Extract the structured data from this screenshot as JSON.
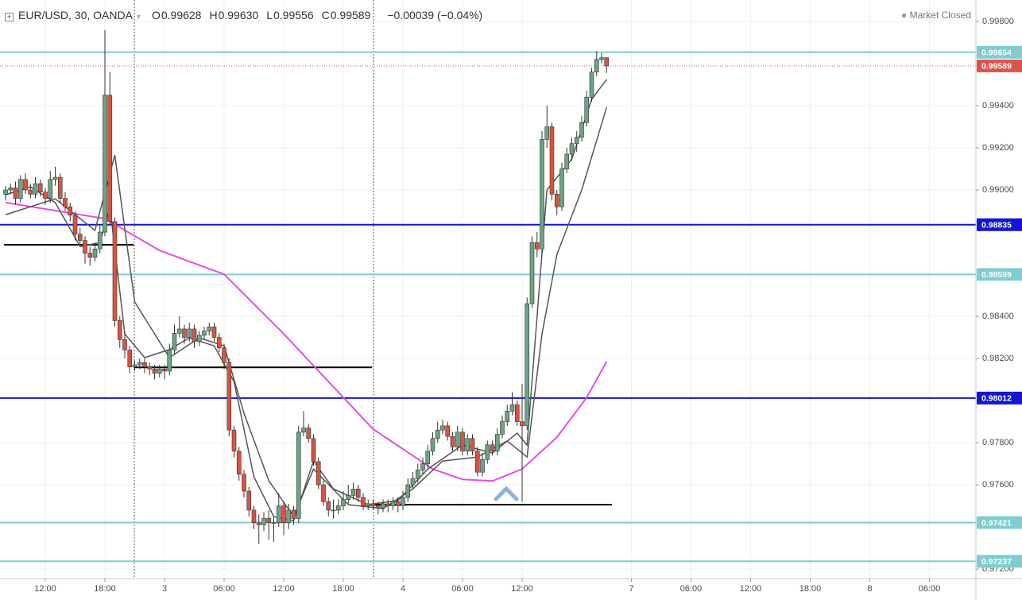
{
  "chart_data": {
    "type": "candlestick",
    "title": "EUR/USD, 30, OANDA",
    "header": {
      "ohlc": [
        {
          "key": "O",
          "text": "0.99628"
        },
        {
          "key": "H",
          "text": "0.99630"
        },
        {
          "key": "L",
          "text": "0.99556"
        },
        {
          "key": "C",
          "text": "0.99589"
        }
      ],
      "change": "−0.00039 (−0.04%)"
    },
    "status": "Market Closed",
    "up_color": "#6ba583",
    "down_color": "#d75442",
    "candles": [
      [
        0.9898,
        0.9902,
        0.9895,
        0.99
      ],
      [
        0.99,
        0.9903,
        0.9898,
        0.9901
      ],
      [
        0.9901,
        0.9904,
        0.9893,
        0.9896
      ],
      [
        0.9896,
        0.9907,
        0.9894,
        0.9905
      ],
      [
        0.9905,
        0.9908,
        0.9898,
        0.99
      ],
      [
        0.99,
        0.9903,
        0.9896,
        0.9898
      ],
      [
        0.9898,
        0.9906,
        0.9896,
        0.9903
      ],
      [
        0.9903,
        0.9905,
        0.9897,
        0.9899
      ],
      [
        0.9899,
        0.9901,
        0.9893,
        0.9896
      ],
      [
        0.9896,
        0.9909,
        0.9894,
        0.9905
      ],
      [
        0.9905,
        0.9911,
        0.9902,
        0.9906
      ],
      [
        0.9906,
        0.9908,
        0.9894,
        0.9896
      ],
      [
        0.9896,
        0.9899,
        0.989,
        0.9892
      ],
      [
        0.9892,
        0.9894,
        0.9885,
        0.9888
      ],
      [
        0.9888,
        0.989,
        0.9876,
        0.9879
      ],
      [
        0.9879,
        0.9882,
        0.9873,
        0.9876
      ],
      [
        0.9876,
        0.9878,
        0.9865,
        0.987
      ],
      [
        0.987,
        0.9873,
        0.9864,
        0.9868
      ],
      [
        0.9868,
        0.9875,
        0.9866,
        0.9872
      ],
      [
        0.9872,
        0.9883,
        0.987,
        0.988
      ],
      [
        0.988,
        0.9976,
        0.9878,
        0.9945
      ],
      [
        0.9945,
        0.9956,
        0.9883,
        0.9885
      ],
      [
        0.9885,
        0.9887,
        0.9835,
        0.9838
      ],
      [
        0.9838,
        0.984,
        0.9825,
        0.9829
      ],
      [
        0.9829,
        0.9833,
        0.982,
        0.9824
      ],
      [
        0.9824,
        0.9826,
        0.9813,
        0.9816
      ],
      [
        0.9816,
        0.9819,
        0.9814,
        0.9817
      ],
      [
        0.9817,
        0.982,
        0.9815,
        0.9818
      ],
      [
        0.9818,
        0.982,
        0.9813,
        0.9816
      ],
      [
        0.9816,
        0.9818,
        0.9812,
        0.9815
      ],
      [
        0.9815,
        0.9817,
        0.981,
        0.9813
      ],
      [
        0.9813,
        0.9817,
        0.9811,
        0.9815
      ],
      [
        0.9815,
        0.9817,
        0.981,
        0.9814
      ],
      [
        0.9814,
        0.9827,
        0.9812,
        0.9824
      ],
      [
        0.9824,
        0.9836,
        0.9822,
        0.9832
      ],
      [
        0.9832,
        0.984,
        0.983,
        0.9834
      ],
      [
        0.9834,
        0.9836,
        0.9827,
        0.983
      ],
      [
        0.983,
        0.9837,
        0.9828,
        0.9834
      ],
      [
        0.9834,
        0.9836,
        0.9825,
        0.9828
      ],
      [
        0.9828,
        0.9833,
        0.9826,
        0.9831
      ],
      [
        0.9831,
        0.9835,
        0.9829,
        0.9833
      ],
      [
        0.9833,
        0.9837,
        0.9831,
        0.9835
      ],
      [
        0.9835,
        0.9837,
        0.9828,
        0.983
      ],
      [
        0.983,
        0.9832,
        0.9823,
        0.9825
      ],
      [
        0.9825,
        0.9827,
        0.9815,
        0.9818
      ],
      [
        0.9818,
        0.982,
        0.9783,
        0.9786
      ],
      [
        0.9786,
        0.9788,
        0.9773,
        0.9776
      ],
      [
        0.9776,
        0.9778,
        0.9762,
        0.9765
      ],
      [
        0.9765,
        0.9767,
        0.9754,
        0.9757
      ],
      [
        0.9757,
        0.9759,
        0.9745,
        0.9748
      ],
      [
        0.9748,
        0.975,
        0.9739,
        0.9742
      ],
      [
        0.9742,
        0.9746,
        0.9732,
        0.9741
      ],
      [
        0.9741,
        0.9747,
        0.9738,
        0.9744
      ],
      [
        0.9744,
        0.9748,
        0.9734,
        0.9742
      ],
      [
        0.9742,
        0.9745,
        0.9733,
        0.9742
      ],
      [
        0.9742,
        0.9756,
        0.974,
        0.975
      ],
      [
        0.975,
        0.9752,
        0.9736,
        0.9742
      ],
      [
        0.9742,
        0.9751,
        0.9739,
        0.9748
      ],
      [
        0.9748,
        0.975,
        0.9741,
        0.9744
      ],
      [
        0.9744,
        0.9788,
        0.9742,
        0.9785
      ],
      [
        0.9785,
        0.9795,
        0.9783,
        0.9787
      ],
      [
        0.9787,
        0.9789,
        0.978,
        0.9782
      ],
      [
        0.9782,
        0.9784,
        0.9769,
        0.9771
      ],
      [
        0.9771,
        0.9773,
        0.9758,
        0.976
      ],
      [
        0.976,
        0.9762,
        0.975,
        0.9752
      ],
      [
        0.9752,
        0.9754,
        0.9745,
        0.9748
      ],
      [
        0.9748,
        0.9753,
        0.9744,
        0.9748
      ],
      [
        0.9748,
        0.9753,
        0.9746,
        0.975
      ],
      [
        0.975,
        0.9757,
        0.9748,
        0.9753
      ],
      [
        0.9753,
        0.976,
        0.9751,
        0.9755
      ],
      [
        0.9755,
        0.9761,
        0.9753,
        0.9758
      ],
      [
        0.9758,
        0.976,
        0.9752,
        0.9754
      ],
      [
        0.9754,
        0.9756,
        0.9748,
        0.975
      ],
      [
        0.975,
        0.9753,
        0.9748,
        0.9751
      ],
      [
        0.9751,
        0.9753,
        0.9748,
        0.975
      ],
      [
        0.975,
        0.9752,
        0.9746,
        0.9749
      ],
      [
        0.9749,
        0.9753,
        0.9747,
        0.9751
      ],
      [
        0.9751,
        0.9753,
        0.9747,
        0.975
      ],
      [
        0.975,
        0.9754,
        0.9748,
        0.9752
      ],
      [
        0.9752,
        0.9754,
        0.9747,
        0.975
      ],
      [
        0.975,
        0.9757,
        0.9748,
        0.9754
      ],
      [
        0.9754,
        0.9763,
        0.9752,
        0.976
      ],
      [
        0.976,
        0.9766,
        0.9758,
        0.9763
      ],
      [
        0.9763,
        0.977,
        0.9761,
        0.9767
      ],
      [
        0.9767,
        0.9773,
        0.9765,
        0.977
      ],
      [
        0.977,
        0.9779,
        0.9768,
        0.9776
      ],
      [
        0.9776,
        0.9785,
        0.9774,
        0.9782
      ],
      [
        0.9782,
        0.979,
        0.978,
        0.9786
      ],
      [
        0.9786,
        0.9791,
        0.9784,
        0.9788
      ],
      [
        0.9788,
        0.979,
        0.9781,
        0.9783
      ],
      [
        0.9783,
        0.9785,
        0.9776,
        0.9778
      ],
      [
        0.9778,
        0.9788,
        0.9776,
        0.9785
      ],
      [
        0.9785,
        0.9787,
        0.9774,
        0.9776
      ],
      [
        0.9776,
        0.9784,
        0.9774,
        0.9782
      ],
      [
        0.9782,
        0.9784,
        0.9774,
        0.9776
      ],
      [
        0.9776,
        0.9778,
        0.9764,
        0.9766
      ],
      [
        0.9766,
        0.9775,
        0.9764,
        0.9772
      ],
      [
        0.9772,
        0.9781,
        0.977,
        0.9779
      ],
      [
        0.9779,
        0.9781,
        0.9774,
        0.9776
      ],
      [
        0.9776,
        0.9787,
        0.9774,
        0.9784
      ],
      [
        0.9784,
        0.9793,
        0.9782,
        0.979
      ],
      [
        0.979,
        0.9798,
        0.9788,
        0.9795
      ],
      [
        0.9795,
        0.9804,
        0.9793,
        0.9798
      ],
      [
        0.9798,
        0.98,
        0.9788,
        0.979
      ],
      [
        0.979,
        0.9808,
        0.9752,
        0.9788
      ],
      [
        0.9788,
        0.9849,
        0.9786,
        0.9846
      ],
      [
        0.9846,
        0.9878,
        0.9844,
        0.9875
      ],
      [
        0.9875,
        0.988,
        0.9868,
        0.9872
      ],
      [
        0.9872,
        0.9928,
        0.987,
        0.9924
      ],
      [
        0.9924,
        0.994,
        0.992,
        0.993
      ],
      [
        0.993,
        0.9932,
        0.9895,
        0.9898
      ],
      [
        0.9898,
        0.99,
        0.9888,
        0.9892
      ],
      [
        0.9892,
        0.9913,
        0.989,
        0.991
      ],
      [
        0.991,
        0.992,
        0.9908,
        0.9917
      ],
      [
        0.9917,
        0.9925,
        0.9914,
        0.9922
      ],
      [
        0.9922,
        0.9928,
        0.9918,
        0.9925
      ],
      [
        0.9925,
        0.9935,
        0.9923,
        0.9932
      ],
      [
        0.9932,
        0.9947,
        0.993,
        0.9944
      ],
      [
        0.9944,
        0.9958,
        0.9942,
        0.9956
      ],
      [
        0.9956,
        0.9966,
        0.9954,
        0.9962
      ],
      [
        0.9962,
        0.9965,
        0.996,
        0.99628
      ],
      [
        0.99628,
        0.9963,
        0.99556,
        0.99589
      ]
    ],
    "moving_averages": [
      {
        "color": "#e64ce6",
        "x": [
          0,
          10,
          20,
          31,
          44,
          56,
          68,
          74,
          80,
          86,
          92,
          98,
          104,
          111,
          117,
          121
        ],
        "values": [
          0.9894,
          0.98902,
          0.98864,
          0.98713,
          0.986,
          0.98317,
          0.98015,
          0.97864,
          0.9777,
          0.97675,
          0.97626,
          0.97618,
          0.97675,
          0.97826,
          0.98015,
          0.98185
        ]
      },
      {
        "color": "#555555",
        "x": [
          0,
          5,
          10,
          15,
          19,
          21,
          24,
          28,
          33,
          37,
          42,
          46,
          50,
          54,
          58,
          62,
          66,
          73,
          79,
          85,
          92,
          98,
          103,
          105,
          109,
          114,
          118,
          121
        ],
        "values": [
          0.98977,
          0.99015,
          0.9894,
          0.98732,
          0.9875,
          0.98921,
          0.98317,
          0.98204,
          0.98242,
          0.98298,
          0.9826,
          0.9809,
          0.97638,
          0.97449,
          0.9743,
          0.97713,
          0.97581,
          0.97506,
          0.97525,
          0.97675,
          0.97789,
          0.97751,
          0.97845,
          0.97789,
          0.99,
          0.99147,
          0.9943,
          0.99525
        ]
      },
      {
        "color": "#555555",
        "x": [
          0,
          10,
          18,
          22,
          26,
          33,
          39,
          44,
          48,
          53,
          58,
          62,
          69,
          76,
          82,
          88,
          95,
          101,
          105,
          108,
          111,
          116,
          121
        ],
        "values": [
          0.98883,
          0.98958,
          0.98808,
          0.99166,
          0.98468,
          0.98204,
          0.98298,
          0.9826,
          0.9794,
          0.97619,
          0.97449,
          0.97675,
          0.97506,
          0.97487,
          0.97581,
          0.97713,
          0.97732,
          0.97808,
          0.97732,
          0.98317,
          0.98694,
          0.99,
          0.99392
        ]
      }
    ],
    "levels": [
      {
        "value": 0.99654,
        "color": "#7fcdd0"
      },
      {
        "value": 0.98835,
        "color": "#1414d2"
      },
      {
        "value": 0.98599,
        "color": "#7fcdd0"
      },
      {
        "value": 0.98012,
        "color": "#1414d2"
      },
      {
        "value": 0.97421,
        "color": "#7fcdd0"
      },
      {
        "value": 0.97237,
        "color": "#7fcdd0"
      }
    ],
    "supports": [
      {
        "value": 0.9874,
        "x": [
          -0.3,
          25.8
        ]
      },
      {
        "value": 0.98158,
        "x": [
          25.8,
          73.8
        ]
      },
      {
        "value": 0.97506,
        "x": [
          73.8,
          122.1
        ]
      }
    ],
    "last_price": {
      "value": 0.99589,
      "color": "#e0534d"
    },
    "xlim": [
      -1.12,
      195.36
    ],
    "ylim": [
      0.97155,
      0.99902
    ],
    "yticks": [
      {
        "value": 0.972,
        "label": "0.97200"
      },
      {
        "value": 0.976,
        "label": "0.97600"
      },
      {
        "value": 0.978,
        "label": "0.97800"
      },
      {
        "value": 0.982,
        "label": "0.98200"
      },
      {
        "value": 0.984,
        "label": "0.98400"
      },
      {
        "value": 0.99,
        "label": "0.99000"
      },
      {
        "value": 0.992,
        "label": "0.99200"
      },
      {
        "value": 0.994,
        "label": "0.99400"
      },
      {
        "value": 0.998,
        "label": "0.99800"
      }
    ],
    "xticks": [
      {
        "value": 8,
        "label": "12:00"
      },
      {
        "value": 20,
        "label": "18:00"
      },
      {
        "value": 32,
        "label": "3"
      },
      {
        "value": 44,
        "label": "06:00"
      },
      {
        "value": 56,
        "label": "12:00"
      },
      {
        "value": 68,
        "label": "18:00"
      },
      {
        "value": 80,
        "label": "4"
      },
      {
        "value": 92,
        "label": "06:00"
      },
      {
        "value": 104,
        "label": "12:00"
      },
      {
        "value": 126,
        "label": "7"
      },
      {
        "value": 138,
        "label": "06:00"
      },
      {
        "value": 150,
        "label": "12:00"
      },
      {
        "value": 162,
        "label": "18:00"
      },
      {
        "value": 174,
        "label": "8"
      },
      {
        "value": 186,
        "label": "06:00"
      }
    ],
    "grid": true
  }
}
